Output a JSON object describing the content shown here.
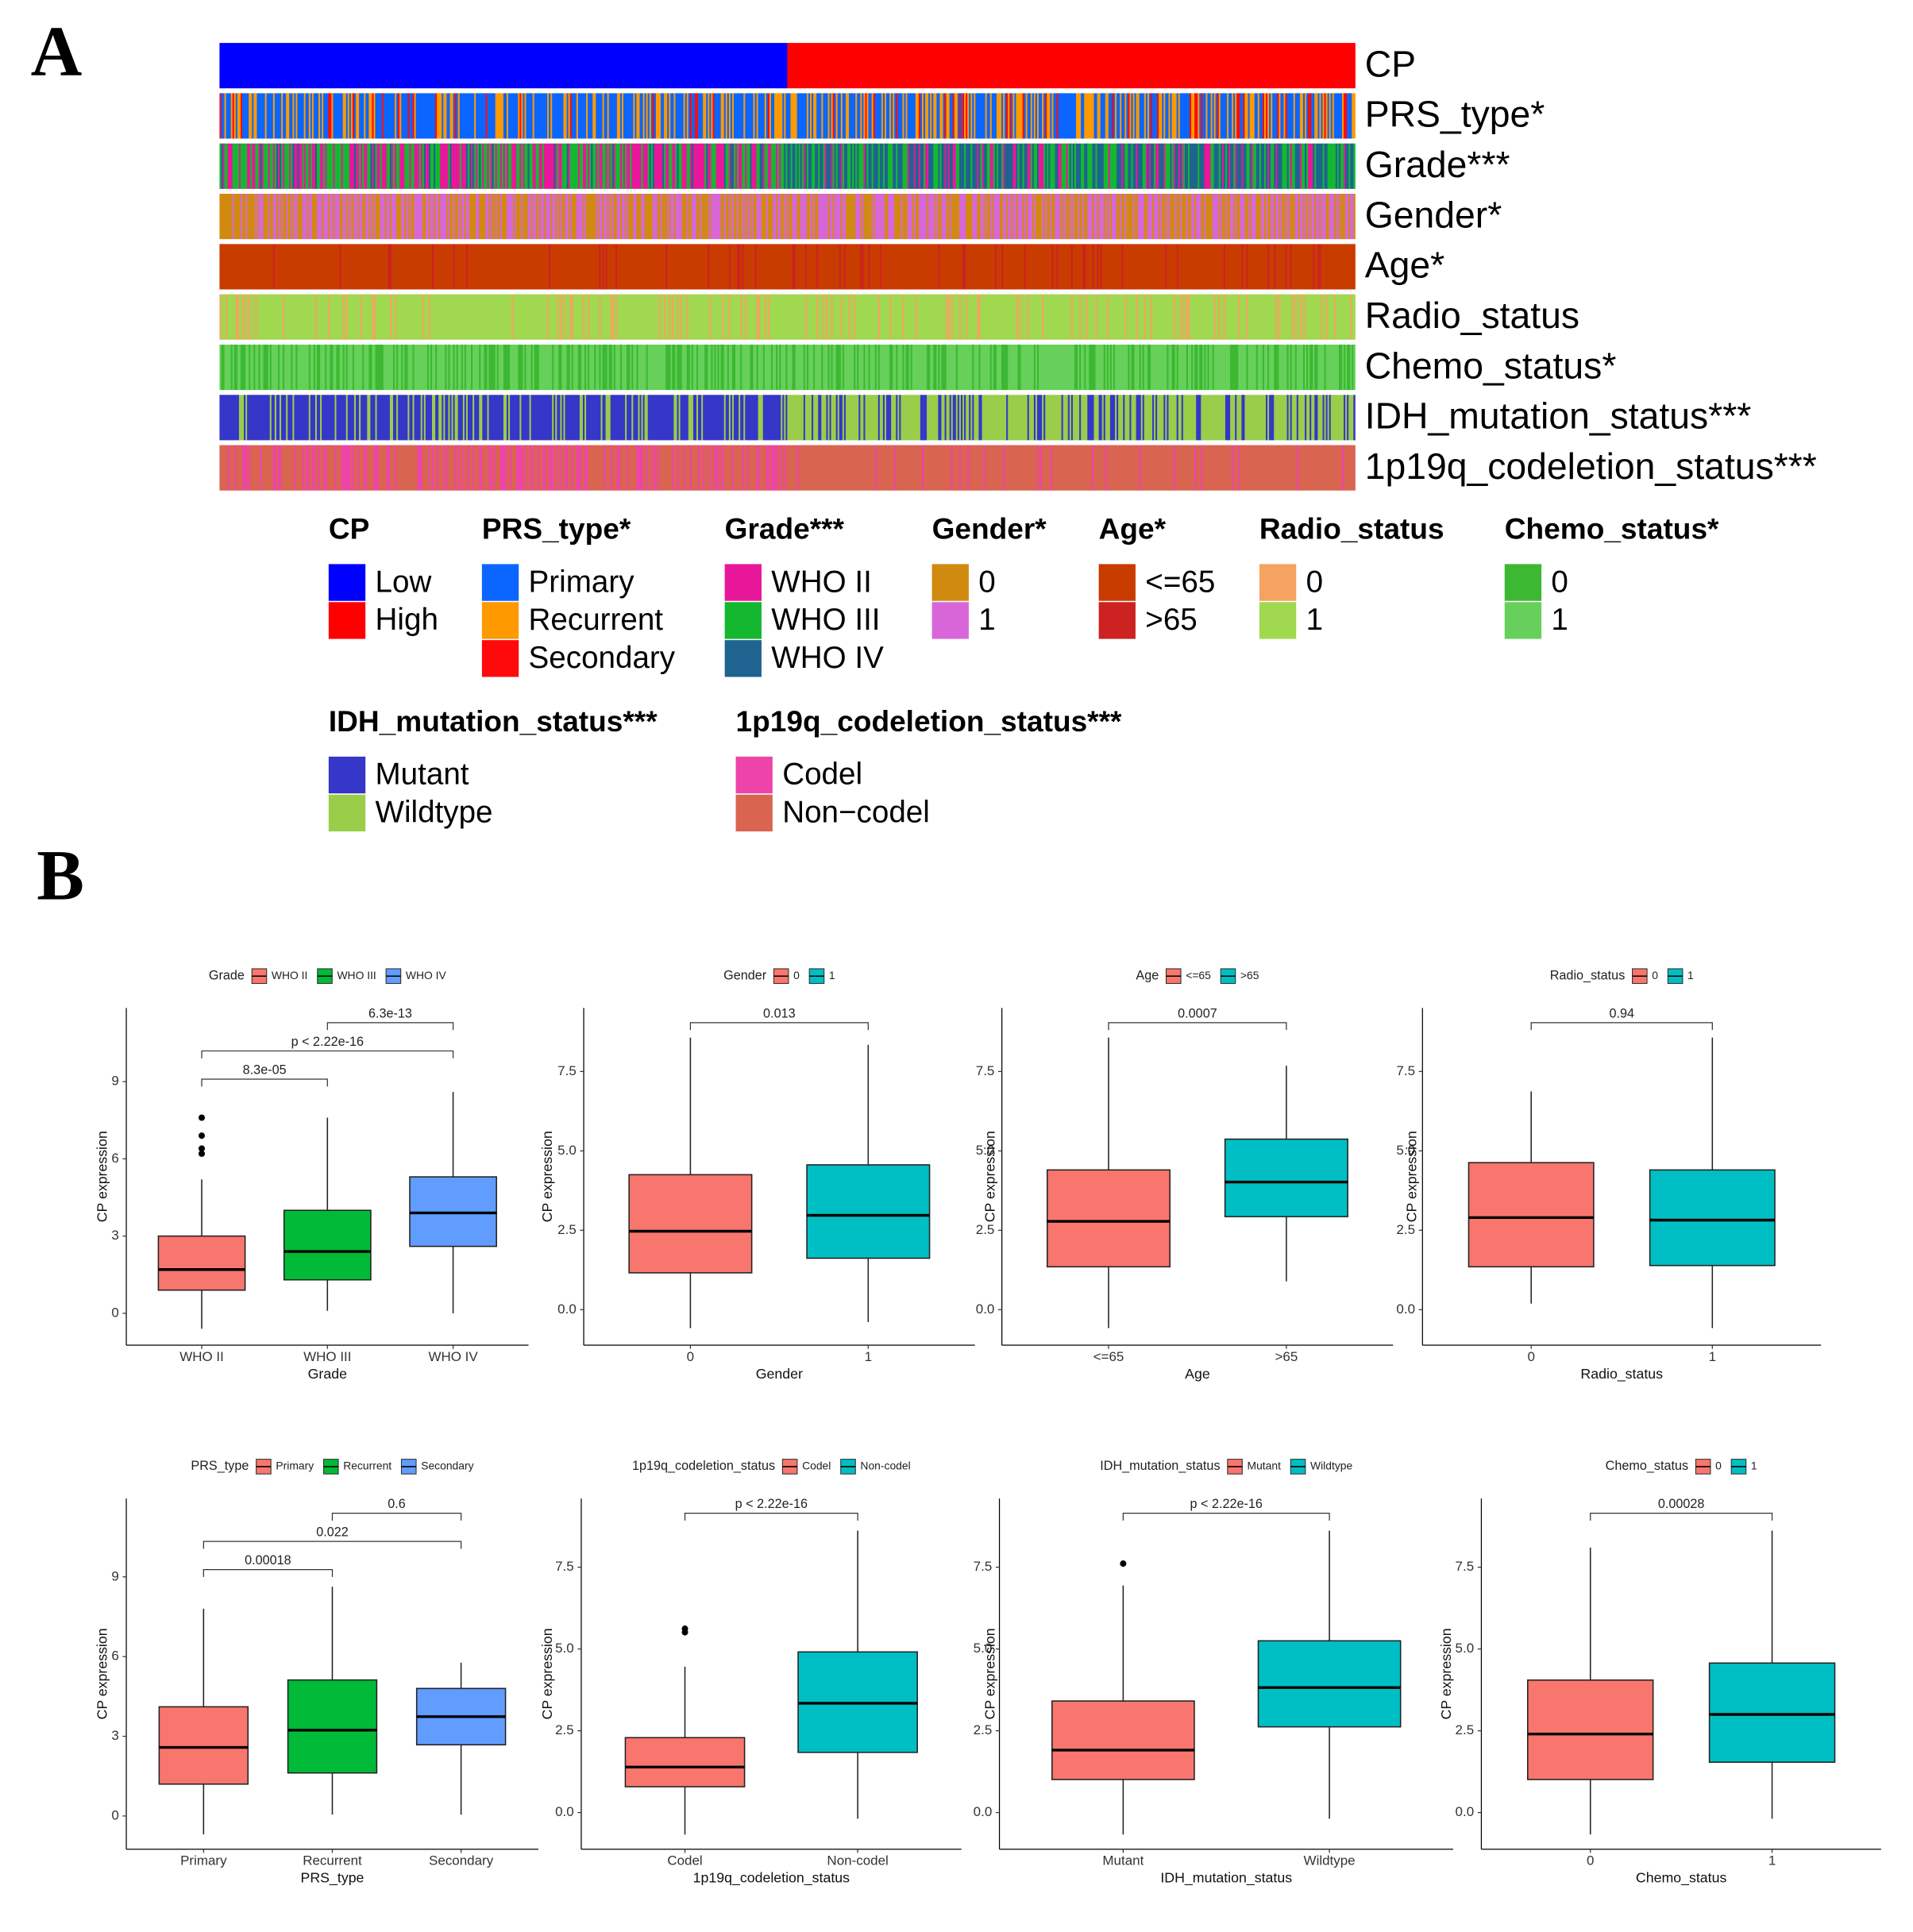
{
  "panels": {
    "a": "A",
    "b": "B"
  },
  "heatmap": {
    "tracks": [
      "CP",
      "PRS_type*",
      "Grade***",
      "Gender*",
      "Age*",
      "Radio_status",
      "Chemo_status*",
      "IDH_mutation_status***",
      "1p19q_codeletion_status***"
    ],
    "legends": [
      {
        "title": "CP",
        "items": [
          {
            "label": "Low",
            "color": "#0000ff"
          },
          {
            "label": "High",
            "color": "#ff0000"
          }
        ]
      },
      {
        "title": "PRS_type*",
        "items": [
          {
            "label": "Primary",
            "color": "#0a66ff"
          },
          {
            "label": "Recurrent",
            "color": "#ff9900"
          },
          {
            "label": "Secondary",
            "color": "#ff0a0a"
          }
        ]
      },
      {
        "title": "Grade***",
        "items": [
          {
            "label": "WHO II",
            "color": "#e8179a"
          },
          {
            "label": "WHO III",
            "color": "#14b830"
          },
          {
            "label": "WHO IV",
            "color": "#1f6390"
          }
        ]
      },
      {
        "title": "Gender*",
        "items": [
          {
            "label": "0",
            "color": "#d18a10"
          },
          {
            "label": "1",
            "color": "#d966d9"
          }
        ]
      },
      {
        "title": "Age*",
        "items": [
          {
            "label": "<=65",
            "color": "#c83c00"
          },
          {
            "label": ">65",
            "color": "#cc2222"
          }
        ]
      },
      {
        "title": "Radio_status",
        "items": [
          {
            "label": "0",
            "color": "#f4a460"
          },
          {
            "label": "1",
            "color": "#a0d850"
          }
        ]
      },
      {
        "title": "Chemo_status*",
        "items": [
          {
            "label": "0",
            "color": "#3cb832"
          },
          {
            "label": "1",
            "color": "#66d05a"
          }
        ]
      },
      {
        "title": "IDH_mutation_status***",
        "items": [
          {
            "label": "Mutant",
            "color": "#3636c8"
          },
          {
            "label": "Wildtype",
            "color": "#9acd4a"
          }
        ]
      },
      {
        "title": "1p19q_codeletion_status***",
        "items": [
          {
            "label": "Codel",
            "color": "#ee44aa"
          },
          {
            "label": "Non−codel",
            "color": "#d96450"
          }
        ]
      }
    ]
  },
  "chart_data": [
    {
      "type": "boxplot",
      "legend_title": "Grade",
      "categories": [
        "WHO II",
        "WHO III",
        "WHO IV"
      ],
      "colors": [
        "#f8766d",
        "#00ba38",
        "#619cff"
      ],
      "boxes": [
        {
          "whisker_low": -0.6,
          "q1": 0.9,
          "median": 1.7,
          "q3": 3.0,
          "whisker_high": 5.2,
          "outliers": [
            6.2,
            6.4,
            6.9,
            7.6
          ]
        },
        {
          "whisker_low": 0.1,
          "q1": 1.3,
          "median": 2.4,
          "q3": 4.0,
          "whisker_high": 7.6,
          "outliers": []
        },
        {
          "whisker_low": 0.0,
          "q1": 2.6,
          "median": 3.9,
          "q3": 5.3,
          "whisker_high": 8.6,
          "outliers": []
        }
      ],
      "xlabel": "Grade",
      "ylabel": "CP expression",
      "ylim": [
        -1.24,
        11.86
      ],
      "yticks": [
        0,
        3,
        6,
        9
      ],
      "comparisons": [
        {
          "label": "8.3e-05",
          "pair": [
            "WHO II",
            "WHO III"
          ]
        },
        {
          "label": "p < 2.22e-16",
          "pair": [
            "WHO II",
            "WHO IV"
          ]
        },
        {
          "label": "6.3e-13",
          "pair": [
            "WHO III",
            "WHO IV"
          ]
        }
      ]
    },
    {
      "type": "boxplot",
      "legend_title": "Gender",
      "categories": [
        "0",
        "1"
      ],
      "colors": [
        "#f8766d",
        "#00bfc4"
      ],
      "boxes": [
        {
          "whisker_low": -0.58,
          "q1": 1.16,
          "median": 2.47,
          "q3": 4.25,
          "whisker_high": 8.57,
          "outliers": []
        },
        {
          "whisker_low": -0.39,
          "q1": 1.62,
          "median": 2.97,
          "q3": 4.56,
          "whisker_high": 8.34,
          "outliers": []
        }
      ],
      "xlabel": "Gender",
      "ylabel": "CP expression",
      "ylim": [
        -1.12,
        9.5
      ],
      "yticks": [
        {
          "value": 0,
          "label": "0.0"
        },
        2.5,
        {
          "value": 5,
          "label": "5.0"
        },
        7.5
      ],
      "comparisons": [
        {
          "label": "0.013",
          "pair": [
            "0",
            "1"
          ]
        }
      ]
    },
    {
      "type": "boxplot",
      "legend_title": "Age",
      "categories": [
        "<=65",
        ">65"
      ],
      "colors": [
        "#f8766d",
        "#00bfc4"
      ],
      "boxes": [
        {
          "whisker_low": -0.58,
          "q1": 1.35,
          "median": 2.78,
          "q3": 4.4,
          "whisker_high": 8.57,
          "outliers": []
        },
        {
          "whisker_low": 0.89,
          "q1": 2.93,
          "median": 4.02,
          "q3": 5.37,
          "whisker_high": 7.68,
          "outliers": []
        }
      ],
      "xlabel": "Age",
      "ylabel": "CP expression",
      "ylim": [
        -1.12,
        9.5
      ],
      "yticks": [
        {
          "value": 0,
          "label": "0.0"
        },
        2.5,
        {
          "value": 5,
          "label": "5.0"
        },
        7.5
      ],
      "comparisons": [
        {
          "label": "0.0007",
          "pair": [
            "<=65",
            ">65"
          ]
        }
      ]
    },
    {
      "type": "boxplot",
      "legend_title": "Radio_status",
      "categories": [
        "0",
        "1"
      ],
      "colors": [
        "#f8766d",
        "#00bfc4"
      ],
      "boxes": [
        {
          "whisker_low": 0.19,
          "q1": 1.35,
          "median": 2.9,
          "q3": 4.63,
          "whisker_high": 6.87,
          "outliers": []
        },
        {
          "whisker_low": -0.58,
          "q1": 1.39,
          "median": 2.82,
          "q3": 4.4,
          "whisker_high": 8.57,
          "outliers": []
        }
      ],
      "xlabel": "Radio_status",
      "ylabel": "CP expression",
      "ylim": [
        -1.12,
        9.5
      ],
      "yticks": [
        {
          "value": 0,
          "label": "0.0"
        },
        2.5,
        {
          "value": 5,
          "label": "5.0"
        },
        7.5
      ],
      "comparisons": [
        {
          "label": "0.94",
          "pair": [
            "0",
            "1"
          ]
        }
      ]
    },
    {
      "type": "boxplot",
      "legend_title": "PRS_type",
      "categories": [
        "Primary",
        "Recurrent",
        "Secondary"
      ],
      "colors": [
        "#f8766d",
        "#00ba38",
        "#619cff"
      ],
      "boxes": [
        {
          "whisker_low": -0.69,
          "q1": 1.2,
          "median": 2.58,
          "q3": 4.11,
          "whisker_high": 7.8,
          "outliers": []
        },
        {
          "whisker_low": 0.05,
          "q1": 1.62,
          "median": 3.23,
          "q3": 5.12,
          "whisker_high": 8.63,
          "outliers": []
        },
        {
          "whisker_low": 0.05,
          "q1": 2.68,
          "median": 3.74,
          "q3": 4.8,
          "whisker_high": 5.77,
          "outliers": []
        }
      ],
      "xlabel": "PRS_type",
      "ylabel": "CP expression",
      "ylim": [
        -1.25,
        11.95
      ],
      "yticks": [
        0,
        3,
        6,
        9
      ],
      "comparisons": [
        {
          "label": "0.00018",
          "pair": [
            "Primary",
            "Recurrent"
          ]
        },
        {
          "label": "0.022",
          "pair": [
            "Primary",
            "Secondary"
          ]
        },
        {
          "label": "0.6",
          "pair": [
            "Recurrent",
            "Secondary"
          ]
        }
      ]
    },
    {
      "type": "boxplot",
      "legend_title": "1p19q_codeletion_status",
      "categories": [
        "Codel",
        "Non-codel"
      ],
      "colors": [
        "#f8766d",
        "#00bfc4"
      ],
      "boxes": [
        {
          "whisker_low": -0.67,
          "q1": 0.79,
          "median": 1.39,
          "q3": 2.29,
          "whisker_high": 4.46,
          "outliers": [
            5.51,
            5.62
          ]
        },
        {
          "whisker_low": -0.19,
          "q1": 1.84,
          "median": 3.34,
          "q3": 4.91,
          "whisker_high": 8.62,
          "outliers": []
        }
      ],
      "xlabel": "1p19q_codeletion_status",
      "ylabel": "CP expression",
      "ylim": [
        -1.12,
        9.6
      ],
      "yticks": [
        {
          "value": 0,
          "label": "0.0"
        },
        2.5,
        {
          "value": 5,
          "label": "5.0"
        },
        7.5
      ],
      "comparisons": [
        {
          "label": "p < 2.22e-16",
          "pair": [
            "Codel",
            "Non-codel"
          ]
        }
      ]
    },
    {
      "type": "boxplot",
      "legend_title": "IDH_mutation_status",
      "categories": [
        "Mutant",
        "Wildtype"
      ],
      "colors": [
        "#f8766d",
        "#00bfc4"
      ],
      "boxes": [
        {
          "whisker_low": -0.67,
          "q1": 1.01,
          "median": 1.91,
          "q3": 3.41,
          "whisker_high": 6.94,
          "outliers": [
            7.61
          ]
        },
        {
          "whisker_low": -0.19,
          "q1": 2.62,
          "median": 3.82,
          "q3": 5.25,
          "whisker_high": 8.62,
          "outliers": []
        }
      ],
      "xlabel": "IDH_mutation_status",
      "ylabel": "CP expression",
      "ylim": [
        -1.12,
        9.6
      ],
      "yticks": [
        {
          "value": 0,
          "label": "0.0"
        },
        2.5,
        {
          "value": 5,
          "label": "5.0"
        },
        7.5
      ],
      "comparisons": [
        {
          "label": "p < 2.22e-16",
          "pair": [
            "Mutant",
            "Wildtype"
          ]
        }
      ]
    },
    {
      "type": "boxplot",
      "legend_title": "Chemo_status",
      "categories": [
        "0",
        "1"
      ],
      "colors": [
        "#f8766d",
        "#00bfc4"
      ],
      "boxes": [
        {
          "whisker_low": -0.67,
          "q1": 1.01,
          "median": 2.4,
          "q3": 4.05,
          "whisker_high": 8.1,
          "outliers": []
        },
        {
          "whisker_low": -0.19,
          "q1": 1.54,
          "median": 3.0,
          "q3": 4.57,
          "whisker_high": 8.62,
          "outliers": []
        }
      ],
      "xlabel": "Chemo_status",
      "ylabel": "CP expression",
      "ylim": [
        -1.12,
        9.6
      ],
      "yticks": [
        {
          "value": 0,
          "label": "0.0"
        },
        2.5,
        {
          "value": 5,
          "label": "5.0"
        },
        7.5
      ],
      "comparisons": [
        {
          "label": "0.00028",
          "pair": [
            "0",
            "1"
          ]
        }
      ]
    }
  ]
}
